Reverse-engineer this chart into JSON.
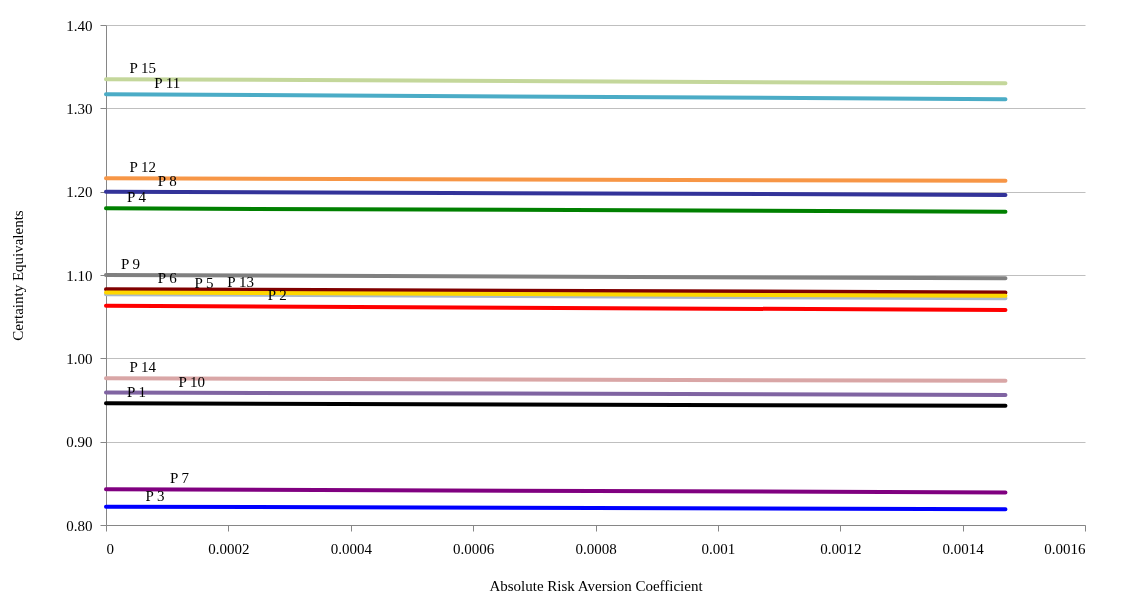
{
  "chart_data": {
    "type": "line",
    "xlabel": "Absolute Risk Aversion Coefficient",
    "ylabel": "Certainty Equivalents",
    "x": [
      0,
      0.00147
    ],
    "xlim": [
      0,
      0.0016
    ],
    "xticks": [
      0,
      0.0002,
      0.0004,
      0.0006,
      0.0008,
      0.001,
      0.0012,
      0.0014,
      0.0016
    ],
    "ylim": [
      0.8,
      1.4
    ],
    "yticks": [
      {
        "value": 0.8,
        "label": "0.80"
      },
      {
        "value": 0.9,
        "label": "0.90"
      },
      {
        "value": 1.0,
        "label": "1.00"
      },
      {
        "value": 1.1,
        "label": "1.10"
      },
      {
        "value": 1.2,
        "label": "1.20"
      },
      {
        "value": 1.3,
        "label": "1.30"
      },
      {
        "value": 1.4,
        "label": "1.40"
      }
    ],
    "grid": "y",
    "marker": "none",
    "line_style": "solid",
    "series": [
      {
        "color": "#000000",
        "values": [
          0.946,
          0.943
        ]
      },
      {
        "color": "#ff0000",
        "values": [
          1.063,
          1.058
        ]
      },
      {
        "color": "#0000ff",
        "values": [
          0.822,
          0.819
        ]
      },
      {
        "color": "#008000",
        "values": [
          1.18,
          1.176
        ]
      },
      {
        "color": "#a9b9cc",
        "values": [
          1.077,
          1.072
        ]
      },
      {
        "color": "#800000",
        "values": [
          1.083,
          1.079
        ]
      },
      {
        "color": "#800080",
        "values": [
          0.843,
          0.839
        ]
      },
      {
        "color": "#333399",
        "values": [
          1.2,
          1.196
        ]
      },
      {
        "color": "#808080",
        "values": [
          1.1,
          1.096
        ]
      },
      {
        "color": "#8064a2",
        "values": [
          0.959,
          0.956
        ]
      },
      {
        "color": "#4bacc6",
        "values": [
          1.317,
          1.311
        ]
      },
      {
        "color": "#f79646",
        "values": [
          1.216,
          1.213
        ]
      },
      {
        "color": "#ffd700",
        "values": [
          1.079,
          1.075
        ]
      },
      {
        "color": "#d9a6a6",
        "values": [
          0.976,
          0.973
        ]
      },
      {
        "color": "#c4d79b",
        "values": [
          1.335,
          1.33
        ]
      }
    ],
    "annotations": [
      {
        "text": "P 15",
        "x": 6e-05,
        "y": 1.335
      },
      {
        "text": "P 11",
        "x": 0.0001,
        "y": 1.317
      },
      {
        "text": "P 12",
        "x": 6e-05,
        "y": 1.216
      },
      {
        "text": "P 8",
        "x": 0.0001,
        "y": 1.2
      },
      {
        "text": "P 4",
        "x": 5e-05,
        "y": 1.18
      },
      {
        "text": "P 9",
        "x": 4e-05,
        "y": 1.1
      },
      {
        "text": "P 6",
        "x": 0.0001,
        "y": 1.083
      },
      {
        "text": "P 5",
        "x": 0.00016,
        "y": 1.077
      },
      {
        "text": "P 13",
        "x": 0.00022,
        "y": 1.079
      },
      {
        "text": "P 2",
        "x": 0.00028,
        "y": 1.063
      },
      {
        "text": "P 14",
        "x": 6e-05,
        "y": 0.976
      },
      {
        "text": "P 10",
        "x": 0.00014,
        "y": 0.959
      },
      {
        "text": "P 1",
        "x": 5e-05,
        "y": 0.946
      },
      {
        "text": "P 7",
        "x": 0.00012,
        "y": 0.843
      },
      {
        "text": "P 3",
        "x": 8e-05,
        "y": 0.822
      }
    ]
  }
}
